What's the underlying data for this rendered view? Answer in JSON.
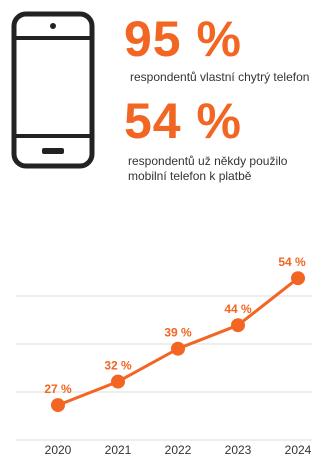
{
  "stats": [
    {
      "value": "95 %",
      "caption": "respondentů vlastní chytrý telefon"
    },
    {
      "value": "54 %",
      "caption": "respondentů už někdy použilo mobilní telefon k platbě"
    }
  ],
  "icon": "smartphone-icon",
  "colors": {
    "accent": "#f26522",
    "text": "#333333",
    "grid": "#dddddd",
    "icon": "#222222"
  },
  "chart_data": {
    "type": "line",
    "x": [
      "2020",
      "2021",
      "2022",
      "2023",
      "2024"
    ],
    "series": [
      {
        "values": [
          27,
          32,
          39,
          44,
          54
        ],
        "labels": [
          "27 %",
          "32 %",
          "39 %",
          "44 %",
          "54 %"
        ]
      }
    ],
    "ylim": [
      20,
      60
    ],
    "grid": true,
    "legend": "none"
  }
}
